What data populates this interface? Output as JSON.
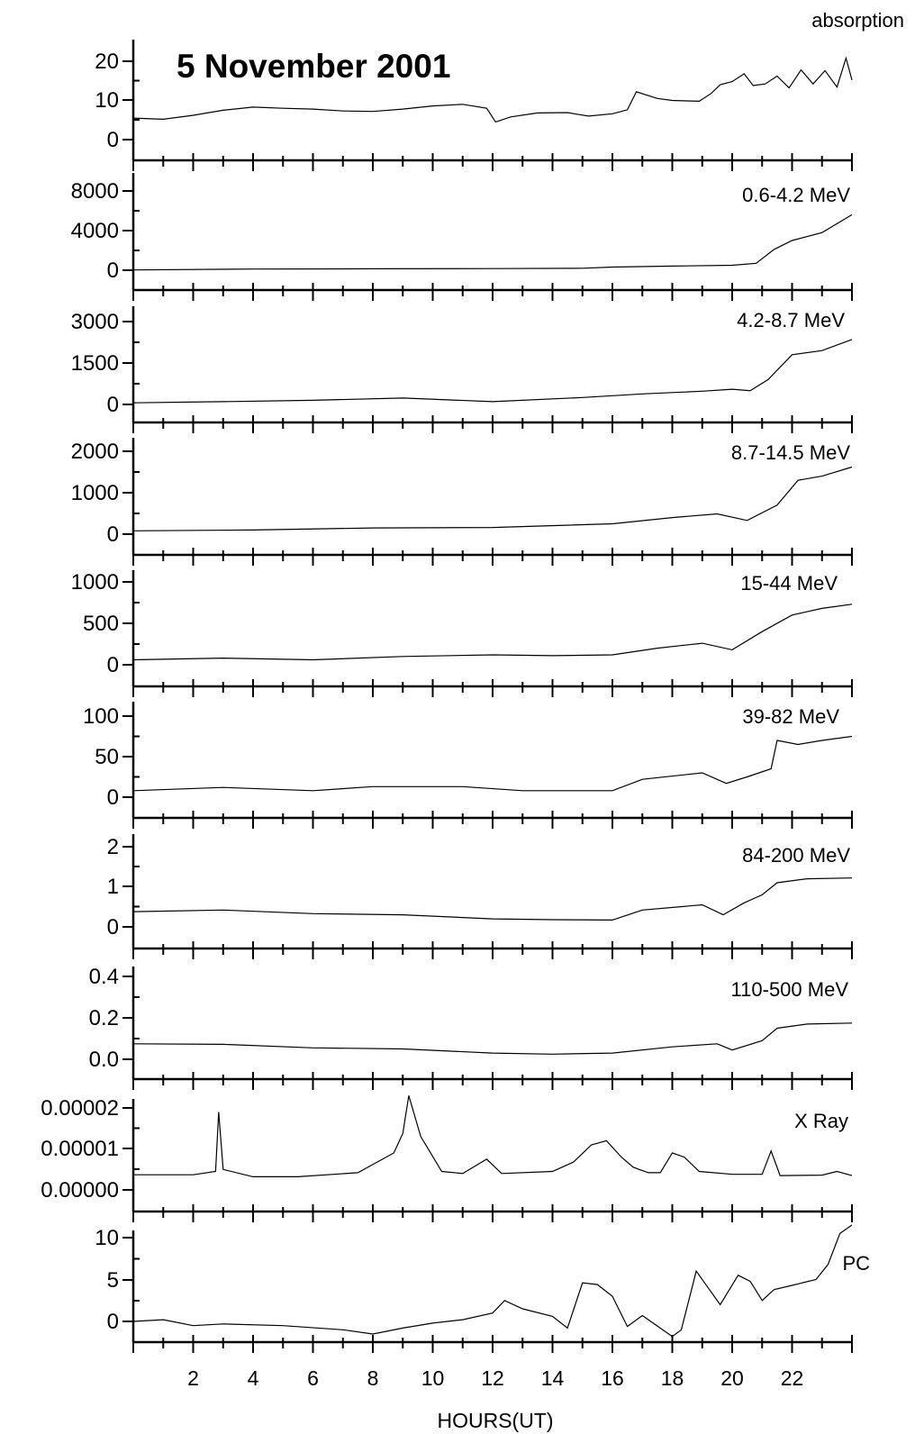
{
  "chart_data": {
    "type": "line",
    "title": "5 November 2001",
    "xlabel": "HOURS(UT)",
    "x_range": [
      0,
      24
    ],
    "x_ticks": [
      "2",
      "4",
      "6",
      "8",
      "10",
      "12",
      "14",
      "16",
      "18",
      "20",
      "22"
    ],
    "grid": false,
    "panels": [
      {
        "label": "absorption",
        "ylim": [
          -2,
          22
        ],
        "yticks": [
          "20",
          "10",
          "0"
        ],
        "points": [
          [
            0,
            5.5
          ],
          [
            1,
            5.2
          ],
          [
            2,
            6.2
          ],
          [
            3,
            7.5
          ],
          [
            4,
            8.3
          ],
          [
            5,
            8.0
          ],
          [
            6,
            7.8
          ],
          [
            7,
            7.3
          ],
          [
            8,
            7.2
          ],
          [
            9,
            7.8
          ],
          [
            10,
            8.6
          ],
          [
            11,
            9.0
          ],
          [
            11.8,
            8.0
          ],
          [
            12.1,
            4.5
          ],
          [
            12.6,
            5.8
          ],
          [
            13.5,
            6.8
          ],
          [
            14.5,
            6.9
          ],
          [
            15.2,
            6.0
          ],
          [
            16,
            6.6
          ],
          [
            16.5,
            7.6
          ],
          [
            16.8,
            12.2
          ],
          [
            17.5,
            10.5
          ],
          [
            18,
            10.0
          ],
          [
            18.9,
            9.8
          ],
          [
            19.3,
            11.8
          ],
          [
            19.6,
            14.0
          ],
          [
            20,
            14.8
          ],
          [
            20.4,
            16.8
          ],
          [
            20.7,
            13.8
          ],
          [
            21.1,
            14.2
          ],
          [
            21.5,
            16.2
          ],
          [
            21.9,
            13.2
          ],
          [
            22.3,
            17.8
          ],
          [
            22.7,
            14.2
          ],
          [
            23.1,
            17.6
          ],
          [
            23.5,
            13.4
          ],
          [
            23.8,
            20.8
          ],
          [
            24,
            15.2
          ]
        ]
      },
      {
        "label": "0.6-4.2 MeV",
        "ylim": [
          -1000,
          9000
        ],
        "yticks": [
          "8000",
          "4000",
          "0"
        ],
        "points": [
          [
            0,
            30
          ],
          [
            4,
            120
          ],
          [
            8,
            150
          ],
          [
            12,
            160
          ],
          [
            15,
            200
          ],
          [
            16,
            320
          ],
          [
            18,
            420
          ],
          [
            20,
            500
          ],
          [
            20.8,
            700
          ],
          [
            21.4,
            2100
          ],
          [
            22,
            3000
          ],
          [
            23,
            3800
          ],
          [
            24,
            5600
          ]
        ]
      },
      {
        "label": "4.2-8.7 MeV",
        "ylim": [
          -500,
          3500
        ],
        "yticks": [
          "3000",
          "1500",
          "0"
        ],
        "points": [
          [
            0,
            60
          ],
          [
            3,
            100
          ],
          [
            6,
            150
          ],
          [
            9,
            230
          ],
          [
            12,
            100
          ],
          [
            15,
            250
          ],
          [
            17,
            380
          ],
          [
            19,
            480
          ],
          [
            20,
            550
          ],
          [
            20.6,
            500
          ],
          [
            21.2,
            900
          ],
          [
            22,
            1800
          ],
          [
            23,
            1950
          ],
          [
            24,
            2350
          ]
        ]
      },
      {
        "label": "8.7-14.5 MeV",
        "ylim": [
          -300,
          2100
        ],
        "yticks": [
          "2000",
          "1000",
          "0"
        ],
        "points": [
          [
            0,
            80
          ],
          [
            4,
            100
          ],
          [
            8,
            150
          ],
          [
            12,
            160
          ],
          [
            16,
            250
          ],
          [
            18,
            400
          ],
          [
            19.5,
            490
          ],
          [
            20.5,
            330
          ],
          [
            21.5,
            700
          ],
          [
            22.2,
            1300
          ],
          [
            23,
            1400
          ],
          [
            24,
            1620
          ]
        ]
      },
      {
        "label": "15-44 MeV",
        "ylim": [
          -150,
          1050
        ],
        "yticks": [
          "1000",
          "500",
          "0"
        ],
        "points": [
          [
            0,
            60
          ],
          [
            3,
            80
          ],
          [
            6,
            60
          ],
          [
            9,
            100
          ],
          [
            12,
            120
          ],
          [
            14,
            110
          ],
          [
            16,
            120
          ],
          [
            17.5,
            200
          ],
          [
            19,
            260
          ],
          [
            20,
            180
          ],
          [
            21,
            400
          ],
          [
            22,
            600
          ],
          [
            23,
            680
          ],
          [
            24,
            730
          ]
        ]
      },
      {
        "label": "39-82 MeV",
        "ylim": [
          -15,
          105
        ],
        "yticks": [
          "100",
          "50",
          "0"
        ],
        "points": [
          [
            0,
            8
          ],
          [
            3,
            12
          ],
          [
            6,
            8
          ],
          [
            8,
            13
          ],
          [
            11,
            13
          ],
          [
            13,
            8
          ],
          [
            16,
            8
          ],
          [
            17,
            22
          ],
          [
            19,
            30
          ],
          [
            19.8,
            17
          ],
          [
            20.5,
            25
          ],
          [
            21.3,
            35
          ],
          [
            21.5,
            70
          ],
          [
            22.2,
            65
          ],
          [
            23,
            70
          ],
          [
            24,
            75
          ]
        ]
      },
      {
        "label": "84-200 MeV",
        "ylim": [
          -0.3,
          2.1
        ],
        "yticks": [
          "2",
          "1",
          "0"
        ],
        "points": [
          [
            0,
            0.38
          ],
          [
            3,
            0.42
          ],
          [
            6,
            0.33
          ],
          [
            9,
            0.3
          ],
          [
            12,
            0.2
          ],
          [
            14,
            0.18
          ],
          [
            16,
            0.17
          ],
          [
            17,
            0.42
          ],
          [
            19,
            0.55
          ],
          [
            19.7,
            0.3
          ],
          [
            20.4,
            0.6
          ],
          [
            21,
            0.8
          ],
          [
            21.5,
            1.1
          ],
          [
            22.5,
            1.2
          ],
          [
            24,
            1.22
          ]
        ]
      },
      {
        "label": "110-500 MeV",
        "ylim": [
          -0.04,
          0.42
        ],
        "yticks": [
          "0.4",
          "0.2",
          "0.0"
        ],
        "points": [
          [
            0,
            0.075
          ],
          [
            3,
            0.072
          ],
          [
            6,
            0.055
          ],
          [
            9,
            0.05
          ],
          [
            12,
            0.03
          ],
          [
            14,
            0.025
          ],
          [
            16,
            0.03
          ],
          [
            18,
            0.06
          ],
          [
            19.5,
            0.075
          ],
          [
            20,
            0.045
          ],
          [
            21,
            0.09
          ],
          [
            21.5,
            0.15
          ],
          [
            22.5,
            0.17
          ],
          [
            24,
            0.175
          ]
        ]
      },
      {
        "label": "X Ray",
        "ylim": [
          -2e-06,
          2.2e-05
        ],
        "yticks": [
          "0.00002",
          "0.00001",
          "0.00000"
        ],
        "points": [
          [
            0,
            3.7e-06
          ],
          [
            2,
            3.7e-06
          ],
          [
            2.75,
            4.5e-06
          ],
          [
            2.85,
            1.9e-05
          ],
          [
            3,
            5e-06
          ],
          [
            4,
            3.2e-06
          ],
          [
            5.5,
            3.2e-06
          ],
          [
            7.5,
            4.2e-06
          ],
          [
            8.7,
            9e-06
          ],
          [
            9,
            1.38e-05
          ],
          [
            9.2,
            2.3e-05
          ],
          [
            9.6,
            1.3e-05
          ],
          [
            10.3,
            4.5e-06
          ],
          [
            11,
            4e-06
          ],
          [
            11.8,
            7.5e-06
          ],
          [
            12.3,
            4e-06
          ],
          [
            14,
            4.5e-06
          ],
          [
            14.7,
            6.8e-06
          ],
          [
            15.3,
            1.1e-05
          ],
          [
            15.8,
            1.2e-05
          ],
          [
            16.3,
            8e-06
          ],
          [
            16.7,
            5.5e-06
          ],
          [
            17.2,
            4.2e-06
          ],
          [
            17.6,
            4.2e-06
          ],
          [
            18,
            9e-06
          ],
          [
            18.4,
            8e-06
          ],
          [
            18.9,
            4.5e-06
          ],
          [
            20,
            3.8e-06
          ],
          [
            21,
            3.8e-06
          ],
          [
            21.3,
            9.5e-06
          ],
          [
            21.6,
            3.5e-06
          ],
          [
            23,
            3.6e-06
          ],
          [
            23.5,
            4.5e-06
          ],
          [
            24,
            3.5e-06
          ]
        ]
      },
      {
        "label": "PC",
        "ylim": [
          -2.5,
          11
        ],
        "yticks": [
          "10",
          "5",
          "0"
        ],
        "points": [
          [
            0,
            0
          ],
          [
            1,
            0.2
          ],
          [
            2,
            -0.5
          ],
          [
            3,
            -0.3
          ],
          [
            5,
            -0.5
          ],
          [
            7,
            -1.0
          ],
          [
            8,
            -1.5
          ],
          [
            9,
            -0.8
          ],
          [
            10,
            -0.2
          ],
          [
            11,
            0.2
          ],
          [
            12,
            1.0
          ],
          [
            12.4,
            2.5
          ],
          [
            13,
            1.5
          ],
          [
            14,
            0.6
          ],
          [
            14.5,
            -0.8
          ],
          [
            15,
            4.6
          ],
          [
            15.5,
            4.4
          ],
          [
            16,
            3.0
          ],
          [
            16.5,
            -0.6
          ],
          [
            17,
            0.7
          ],
          [
            18,
            -1.8
          ],
          [
            18.3,
            -1.0
          ],
          [
            18.8,
            6.0
          ],
          [
            19.2,
            4.0
          ],
          [
            19.6,
            2.0
          ],
          [
            20.2,
            5.5
          ],
          [
            20.6,
            4.8
          ],
          [
            21,
            2.5
          ],
          [
            21.4,
            3.8
          ],
          [
            22,
            4.3
          ],
          [
            22.8,
            5.0
          ],
          [
            23.2,
            6.8
          ],
          [
            23.6,
            10.5
          ],
          [
            24,
            11.5
          ]
        ]
      }
    ]
  }
}
